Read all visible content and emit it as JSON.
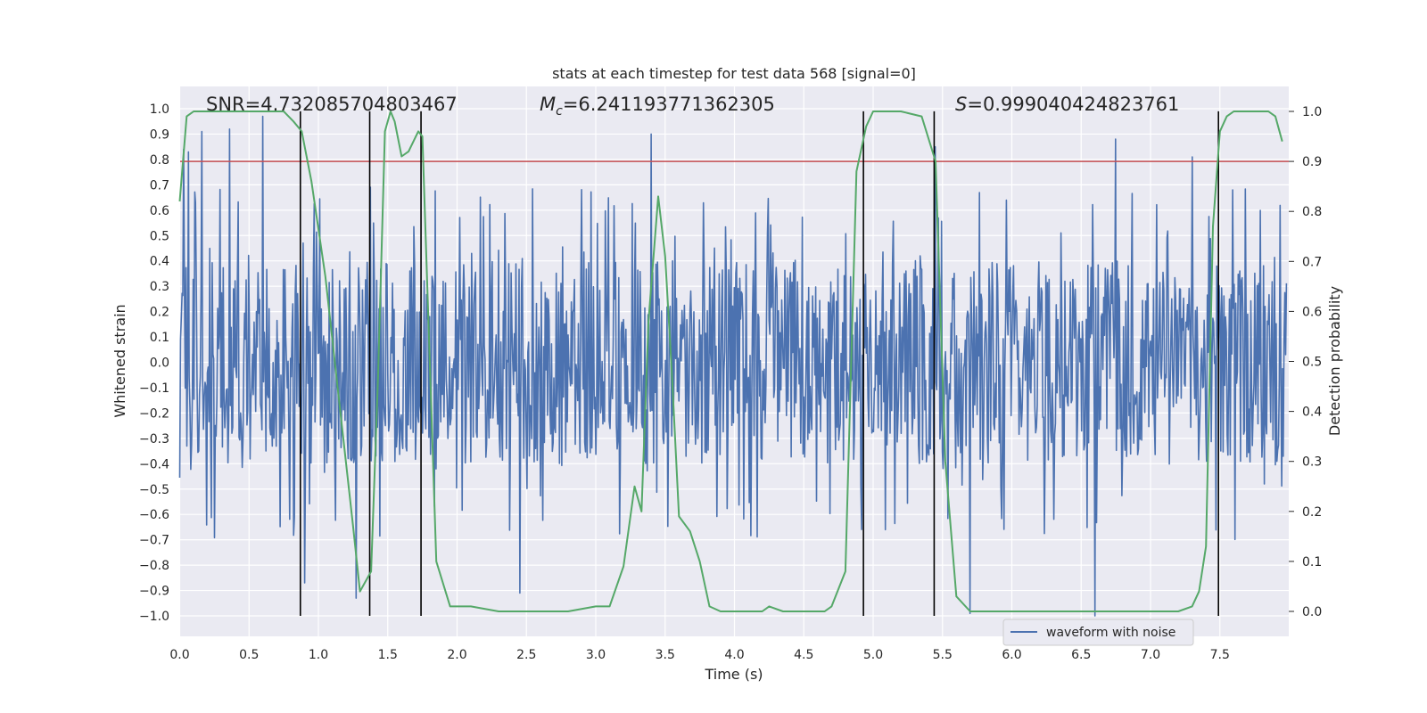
{
  "chart_data": {
    "type": "line",
    "title": "stats at each timestep for test data 568 [signal=0]",
    "xlabel": "Time (s)",
    "ylabel_left": "Whitened strain",
    "ylabel_right": "Detection probability",
    "xlim": [
      0.0,
      8.0
    ],
    "ylim_left": [
      -1.1,
      1.05
    ],
    "ylim_right": [
      -0.05,
      1.03
    ],
    "x_ticks": [
      "0.0",
      "0.5",
      "1.0",
      "1.5",
      "2.0",
      "2.5",
      "3.0",
      "3.5",
      "4.0",
      "4.5",
      "5.0",
      "5.5",
      "6.0",
      "6.5",
      "7.0",
      "7.5"
    ],
    "y_left_ticks": [
      "-1.0",
      "-0.9",
      "-0.8",
      "-0.7",
      "-0.6",
      "-0.5",
      "-0.4",
      "-0.3",
      "-0.2",
      "-0.1",
      "0.0",
      "0.1",
      "0.2",
      "0.3",
      "0.4",
      "0.5",
      "0.6",
      "0.7",
      "0.8",
      "0.9",
      "1.0"
    ],
    "y_right_ticks": [
      "0.0",
      "0.1",
      "0.2",
      "0.3",
      "0.4",
      "0.5",
      "0.6",
      "0.7",
      "0.8",
      "0.9",
      "1.0"
    ],
    "annotations": {
      "snr_text": "SNR=4.732085704803467",
      "mc_symbol": "M",
      "mc_sub": "c",
      "mc_value": "=6.241193771362305",
      "s_symbol": "S",
      "s_value": "=0.999040424823761"
    },
    "legend": {
      "label": "waveform with noise",
      "placement": "lower-right"
    },
    "series": [
      {
        "name": "waveform with noise",
        "axis": "left",
        "color": "#4c72b0",
        "description": "dense noisy strain, mostly within ±0.4 with spikes",
        "envelope_upper": 0.4,
        "envelope_lower": -0.4,
        "sample_count": 1400,
        "peaks": [
          {
            "x": 0.03,
            "y": 0.84
          },
          {
            "x": 0.06,
            "y": 0.83
          },
          {
            "x": 0.16,
            "y": 0.91
          },
          {
            "x": 0.36,
            "y": 0.92
          },
          {
            "x": 0.6,
            "y": 0.97
          },
          {
            "x": 0.9,
            "y": -0.87
          },
          {
            "x": 1.27,
            "y": -0.93
          },
          {
            "x": 2.45,
            "y": -0.91
          },
          {
            "x": 3.4,
            "y": 0.9
          },
          {
            "x": 5.45,
            "y": 0.85
          },
          {
            "x": 5.7,
            "y": -0.99
          },
          {
            "x": 6.6,
            "y": -1.0
          },
          {
            "x": 6.75,
            "y": 0.88
          },
          {
            "x": 7.3,
            "y": 0.81
          }
        ]
      },
      {
        "name": "detection probability",
        "axis": "right",
        "color": "#55a868",
        "x": [
          0.0,
          0.05,
          0.1,
          0.2,
          0.4,
          0.6,
          0.75,
          0.82,
          0.88,
          0.95,
          1.05,
          1.15,
          1.25,
          1.3,
          1.38,
          1.43,
          1.48,
          1.52,
          1.55,
          1.6,
          1.65,
          1.72,
          1.75,
          1.85,
          1.95,
          2.0,
          2.05,
          2.1,
          2.3,
          2.5,
          2.8,
          3.0,
          3.1,
          3.2,
          3.28,
          3.33,
          3.38,
          3.45,
          3.5,
          3.55,
          3.6,
          3.68,
          3.75,
          3.82,
          3.9,
          4.1,
          4.2,
          4.25,
          4.35,
          4.5,
          4.65,
          4.7,
          4.8,
          4.88,
          4.95,
          5.0,
          5.05,
          5.2,
          5.35,
          5.45,
          5.52,
          5.6,
          5.7,
          5.8,
          6.0,
          6.3,
          6.7,
          7.0,
          7.2,
          7.3,
          7.35,
          7.4,
          7.45,
          7.5,
          7.55,
          7.6,
          7.7,
          7.8,
          7.85,
          7.9,
          7.95
        ],
        "y": [
          0.82,
          0.99,
          1.0,
          1.0,
          1.0,
          1.0,
          1.0,
          0.98,
          0.96,
          0.86,
          0.67,
          0.42,
          0.17,
          0.04,
          0.08,
          0.47,
          0.96,
          1.0,
          0.98,
          0.91,
          0.92,
          0.96,
          0.95,
          0.1,
          0.01,
          0.01,
          0.01,
          0.01,
          0.0,
          0.0,
          0.0,
          0.01,
          0.01,
          0.09,
          0.25,
          0.2,
          0.58,
          0.83,
          0.71,
          0.47,
          0.19,
          0.16,
          0.1,
          0.01,
          0.0,
          0.0,
          0.0,
          0.01,
          0.0,
          0.0,
          0.0,
          0.01,
          0.08,
          0.88,
          0.97,
          1.0,
          1.0,
          1.0,
          0.99,
          0.9,
          0.3,
          0.03,
          0.0,
          0.0,
          0.0,
          0.0,
          0.0,
          0.0,
          0.0,
          0.01,
          0.04,
          0.13,
          0.77,
          0.96,
          0.99,
          1.0,
          1.0,
          1.0,
          1.0,
          0.99,
          0.94
        ]
      },
      {
        "name": "threshold",
        "axis": "right",
        "color": "#c44e52",
        "y": 0.9
      }
    ],
    "vertical_lines": [
      0.87,
      1.37,
      1.74,
      4.93,
      5.44,
      7.49
    ],
    "vertical_line_range": [
      -1.0,
      0.99
    ]
  }
}
